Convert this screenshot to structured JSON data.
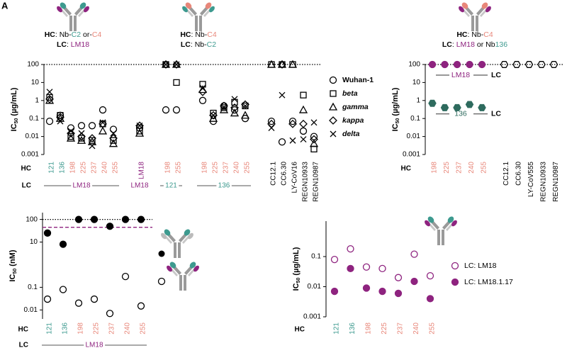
{
  "panel_label": "A",
  "chart_data": [
    {
      "type": "scatter",
      "headers": [
        [
          [
            {
              "text": "HC",
              "bold": true
            },
            {
              "text": ": Nb-"
            },
            {
              "text": "C2",
              "color": "#3d9a8f"
            },
            {
              "text": " or-"
            },
            {
              "text": "C4",
              "color": "#e8877a"
            }
          ],
          [
            {
              "text": "LC",
              "bold": true
            },
            {
              "text": ": "
            },
            {
              "text": "LM18",
              "color": "#8e237f"
            }
          ]
        ],
        [
          [
            {
              "text": "HC",
              "bold": true
            },
            {
              "text": ": Nb-"
            },
            {
              "text": "C4",
              "color": "#e8877a"
            }
          ],
          [
            {
              "text": "LC",
              "bold": true
            },
            {
              "text": ": Nb-"
            },
            {
              "text": "C2",
              "color": "#3d9a8f"
            }
          ]
        ]
      ],
      "ylabel": {
        "main": "IC",
        "sub": "50",
        "unit": "(µg/mL)"
      },
      "x_row_label": "HC",
      "lc_row_label": "LC",
      "categories": [
        "121",
        "136",
        "198",
        "225",
        "237",
        "240",
        "255",
        "LM18",
        "198",
        "255",
        "198",
        "225",
        "237",
        "240",
        "255",
        "CC12.1",
        "CC6.30",
        "LY-CoV16",
        "REGN10933",
        "REGN10987"
      ],
      "category_colors": [
        "#3d9a8f",
        "#3d9a8f",
        "#e8877a",
        "#e8877a",
        "#e8877a",
        "#e8877a",
        "#e8877a",
        "#8e237f",
        "#e8877a",
        "#e8877a",
        "#e8877a",
        "#e8877a",
        "#e8877a",
        "#e8877a",
        "#e8877a",
        "#000000",
        "#000000",
        "#000000",
        "#000000",
        "#000000"
      ],
      "lc_groups": [
        {
          "label": "LM18",
          "start": 0,
          "end": 6,
          "color": "#8e237f"
        },
        {
          "label": "LM18",
          "start": 7,
          "end": 7,
          "color": "#8e237f"
        },
        {
          "label": "121",
          "start": 8,
          "end": 9,
          "color": "#3d9a8f"
        },
        {
          "label": "136",
          "start": 10,
          "end": 14,
          "color": "#3d9a8f"
        }
      ],
      "yscale": "log",
      "ylim": [
        0.001,
        100
      ],
      "yticks": [
        0.001,
        0.01,
        0.1,
        1,
        10,
        100
      ],
      "reference_lines": [
        {
          "value": 100,
          "style": "dotted",
          "color": "#000000"
        }
      ],
      "legend": true,
      "series": [
        {
          "name": "Wuhan-1",
          "marker": "circle",
          "color": "#000000",
          "filled": false,
          "italic": false,
          "values": [
            0.07,
            0.15,
            0.03,
            0.04,
            0.04,
            0.3,
            0.025,
            0.03,
            0.3,
            0.3,
            1,
            0.07,
            0.5,
            0.3,
            0.1,
            0.07,
            0.005,
            0.07,
            0.02,
            0.01
          ]
        },
        {
          "name": "beta",
          "marker": "square",
          "color": "#000000",
          "filled": false,
          "italic": true,
          "values": [
            1.5,
            0.15,
            0.01,
            0.008,
            0.006,
            0.05,
            0.006,
            0.02,
            100,
            10,
            8,
            0.2,
            0.4,
            0.8,
            0.5,
            100,
            100,
            100,
            2,
            0.002
          ]
        },
        {
          "name": "gamma",
          "marker": "triangle",
          "color": "#000000",
          "filled": false,
          "italic": true,
          "values": [
            1,
            0.1,
            0.008,
            0.006,
            0.005,
            0.02,
            0.004,
            0.015,
            100,
            100,
            4,
            0.1,
            0.3,
            0.2,
            0.15,
            100,
            100,
            100,
            0.3,
            0.004
          ]
        },
        {
          "name": "kappa",
          "marker": "diamond",
          "color": "#000000",
          "filled": false,
          "italic": true,
          "values": [
            1.2,
            0.12,
            0.015,
            0.01,
            0.008,
            0.05,
            0.008,
            0.04,
            100,
            100,
            3,
            0.15,
            0.5,
            0.4,
            0.6,
            0.05,
            100,
            0.05,
            0.05,
            0.007
          ]
        },
        {
          "name": "delta",
          "marker": "x",
          "color": "#000000",
          "filled": false,
          "italic": true,
          "values": [
            3,
            0.07,
            0.02,
            0.015,
            0.003,
            0.06,
            0.015,
            0.04,
            100,
            100,
            5,
            0.15,
            0.4,
            1.2,
            0.5,
            0.03,
            2,
            0.006,
            0.007,
            0.06
          ]
        }
      ]
    },
    {
      "type": "scatter",
      "headers": [
        [
          [
            {
              "text": "HC",
              "bold": true
            },
            {
              "text": ": Nb-"
            },
            {
              "text": "C4",
              "color": "#e8877a"
            }
          ],
          [
            {
              "text": "LC",
              "bold": true
            },
            {
              "text": ": "
            },
            {
              "text": "LM18",
              "color": "#8e237f"
            },
            {
              "text": " or Nb"
            },
            {
              "text": "136",
              "color": "#3d9a8f"
            }
          ]
        ]
      ],
      "ylabel": {
        "main": "IC",
        "sub": "50",
        "unit": "(µg/mL)"
      },
      "x_row_label": "HC",
      "inline_suffix": "LC",
      "categories": [
        "198",
        "225",
        "237",
        "240",
        "255",
        "CC12.1",
        "CC6.30",
        "LY-CoV555",
        "REGN10933",
        "REGN10987"
      ],
      "category_colors": [
        "#e8877a",
        "#e8877a",
        "#e8877a",
        "#e8877a",
        "#e8877a",
        "#000000",
        "#000000",
        "#000000",
        "#000000",
        "#000000"
      ],
      "yscale": "log",
      "ylim": [
        0.001,
        100
      ],
      "yticks": [
        0.001,
        0.01,
        0.1,
        1,
        10,
        100
      ],
      "reference_lines": [
        {
          "value": 100,
          "style": "dotted",
          "color": "#000000"
        }
      ],
      "series": [
        {
          "name": "LM18",
          "marker": "circle",
          "color": "#8e237f",
          "filled": true,
          "values": [
            100,
            100,
            100,
            100,
            100,
            null,
            null,
            null,
            null,
            null
          ]
        },
        {
          "name": "136",
          "marker": "hexagon",
          "color": "#2e6b5e",
          "filled": true,
          "values": [
            0.7,
            0.4,
            0.4,
            0.6,
            0.4,
            null,
            null,
            null,
            null,
            null
          ]
        },
        {
          "marker": "hexagon",
          "color": "#000000",
          "filled": false,
          "values": [
            null,
            null,
            null,
            null,
            null,
            100,
            100,
            100,
            100,
            100
          ]
        }
      ]
    },
    {
      "type": "scatter",
      "ylabel": {
        "main": "IC",
        "sub": "50",
        "unit": "(nM)"
      },
      "x_row_label": "HC",
      "lc_row_label": "LC",
      "categories": [
        "121",
        "136",
        "198",
        "225",
        "237",
        "240",
        "255"
      ],
      "category_colors": [
        "#3d9a8f",
        "#3d9a8f",
        "#e8877a",
        "#e8877a",
        "#e8877a",
        "#e8877a",
        "#e8877a"
      ],
      "lc_groups": [
        {
          "label": "LM18",
          "start": 0,
          "end": 6,
          "color": "#8e237f"
        }
      ],
      "yscale": "log",
      "ylim": [
        0.004,
        200
      ],
      "yticks": [
        0.01,
        0.1,
        10,
        100
      ],
      "reference_lines": [
        {
          "value": 100,
          "style": "dotted",
          "color": "#000000"
        },
        {
          "value": 45,
          "style": "dashed",
          "color": "#8e237f"
        }
      ],
      "series": [
        {
          "marker": "circle",
          "color": "#000000",
          "filled": true,
          "values": [
            25,
            8,
            100,
            100,
            50,
            100,
            100
          ]
        },
        {
          "marker": "circle",
          "color": "#000000",
          "filled": false,
          "values": [
            0.03,
            0.08,
            0.02,
            0.03,
            0.007,
            0.3,
            0.015
          ]
        }
      ]
    },
    {
      "type": "scatter",
      "ylabel": {
        "main": "IC",
        "sub": "50",
        "unit": "(µg/mL)"
      },
      "x_row_label": "HC",
      "categories": [
        "121",
        "136",
        "198",
        "225",
        "237",
        "240",
        "255"
      ],
      "category_colors": [
        "#3d9a8f",
        "#3d9a8f",
        "#e8877a",
        "#e8877a",
        "#e8877a",
        "#e8877a",
        "#e8877a"
      ],
      "yscale": "log",
      "ylim": [
        0.001,
        1.5
      ],
      "yticks": [
        0.001,
        0.01,
        0.1
      ],
      "legend": true,
      "series": [
        {
          "name": "LC: LM18",
          "marker": "circle",
          "color": "#8e237f",
          "filled": false,
          "values": [
            0.08,
            0.18,
            0.045,
            0.04,
            0.02,
            0.12,
            0.023
          ]
        },
        {
          "name": "LC: LM18.1.17",
          "marker": "circle",
          "color": "#8e237f",
          "filled": true,
          "values": [
            0.007,
            0.04,
            0.009,
            0.007,
            0.006,
            0.015,
            0.004
          ]
        }
      ]
    }
  ]
}
